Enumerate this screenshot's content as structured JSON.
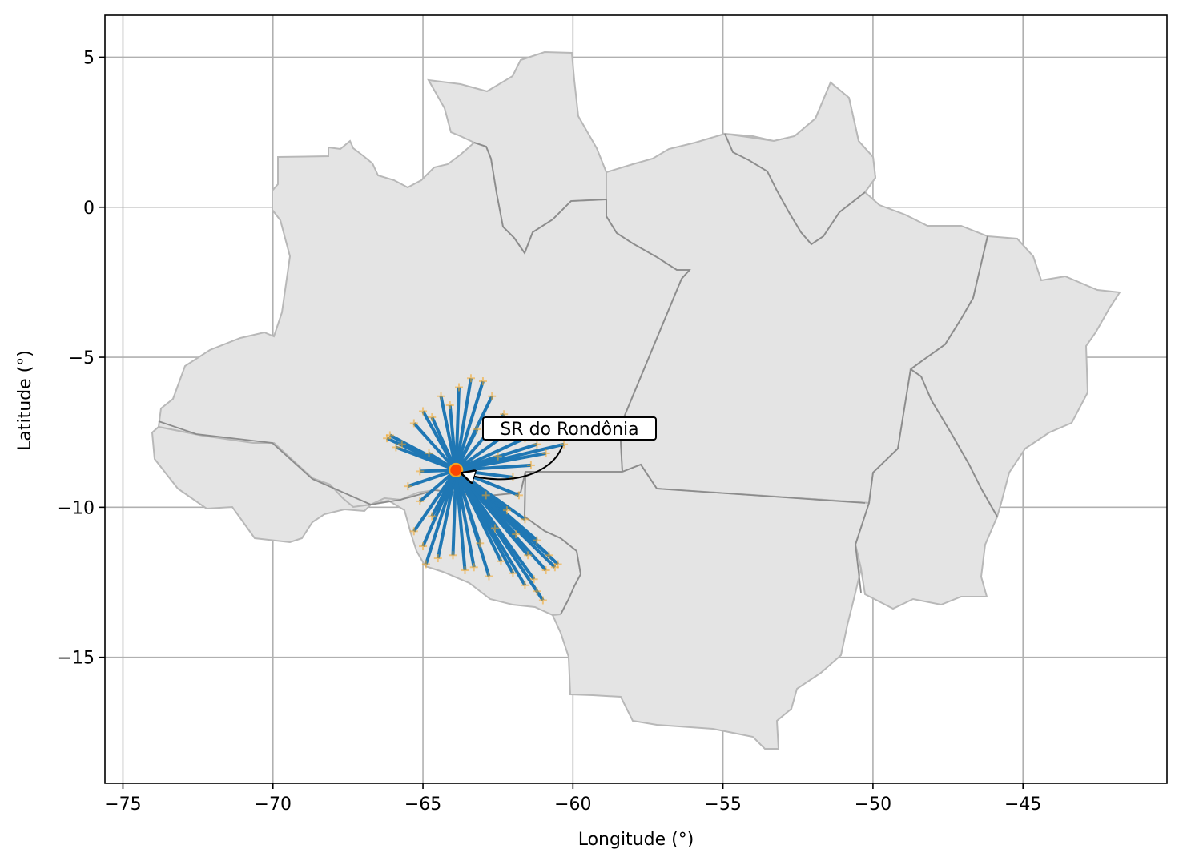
{
  "chart_data": {
    "type": "map",
    "xlabel": "Longitude (°)",
    "ylabel": "Latitude (°)",
    "xlim": [
      -75.6,
      -40.2
    ],
    "ylim": [
      -19.2,
      6.4
    ],
    "x_ticks": [
      -75,
      -70,
      -65,
      -60,
      -55,
      -50,
      -45
    ],
    "x_tick_labels": [
      "−75",
      "−70",
      "−65",
      "−60",
      "−55",
      "−50",
      "−45"
    ],
    "y_ticks": [
      5,
      0,
      -5,
      -10,
      -15
    ],
    "y_tick_labels": [
      "5",
      "0",
      "−5",
      "−10",
      "−15"
    ],
    "grid": true,
    "destination": {
      "label": "SR do Rondônia",
      "lon": -63.9,
      "lat": -8.76,
      "color": "#ff4500"
    },
    "annotation": {
      "text": "SR do Rondônia",
      "text_lon": -60.3,
      "text_lat": -7.5
    },
    "colors": {
      "flow": "#1f77b4",
      "origin": "#f5a623",
      "region_fill": "#e4e4e4",
      "destination": "#ff4500"
    },
    "origins": [
      [
        -66.1,
        -7.6
      ],
      [
        -65.7,
        -7.9
      ],
      [
        -65.3,
        -7.2
      ],
      [
        -65.0,
        -6.8
      ],
      [
        -64.7,
        -7.0
      ],
      [
        -64.4,
        -6.3
      ],
      [
        -64.1,
        -6.6
      ],
      [
        -63.8,
        -6.0
      ],
      [
        -63.4,
        -5.7
      ],
      [
        -63.0,
        -5.8
      ],
      [
        -62.7,
        -6.3
      ],
      [
        -62.3,
        -6.9
      ],
      [
        -62.0,
        -7.4
      ],
      [
        -61.6,
        -7.7
      ],
      [
        -61.2,
        -7.9
      ],
      [
        -60.3,
        -7.9
      ],
      [
        -60.9,
        -8.2
      ],
      [
        -61.4,
        -8.6
      ],
      [
        -62.0,
        -9.0
      ],
      [
        -61.8,
        -9.6
      ],
      [
        -62.2,
        -10.1
      ],
      [
        -61.6,
        -10.4
      ],
      [
        -61.9,
        -10.9
      ],
      [
        -61.2,
        -11.1
      ],
      [
        -60.8,
        -11.6
      ],
      [
        -60.5,
        -11.9
      ],
      [
        -60.9,
        -12.1
      ],
      [
        -61.3,
        -12.4
      ],
      [
        -61.2,
        -12.8
      ],
      [
        -61.0,
        -13.1
      ],
      [
        -61.6,
        -12.6
      ],
      [
        -62.0,
        -12.2
      ],
      [
        -62.4,
        -11.8
      ],
      [
        -62.8,
        -12.3
      ],
      [
        -63.3,
        -12.0
      ],
      [
        -63.6,
        -12.1
      ],
      [
        -64.0,
        -11.6
      ],
      [
        -64.5,
        -11.7
      ],
      [
        -64.9,
        -11.9
      ],
      [
        -65.0,
        -11.3
      ],
      [
        -65.3,
        -10.8
      ],
      [
        -64.7,
        -10.3
      ],
      [
        -65.1,
        -9.8
      ],
      [
        -65.5,
        -9.3
      ],
      [
        -65.1,
        -8.8
      ],
      [
        -64.8,
        -8.2
      ],
      [
        -65.9,
        -8.0
      ],
      [
        -66.2,
        -7.7
      ],
      [
        -62.6,
        -10.7
      ],
      [
        -63.1,
        -11.2
      ],
      [
        -61.5,
        -11.6
      ],
      [
        -60.6,
        -12.0
      ],
      [
        -62.9,
        -9.6
      ],
      [
        -62.5,
        -8.3
      ],
      [
        -63.2,
        -7.4
      ]
    ]
  }
}
